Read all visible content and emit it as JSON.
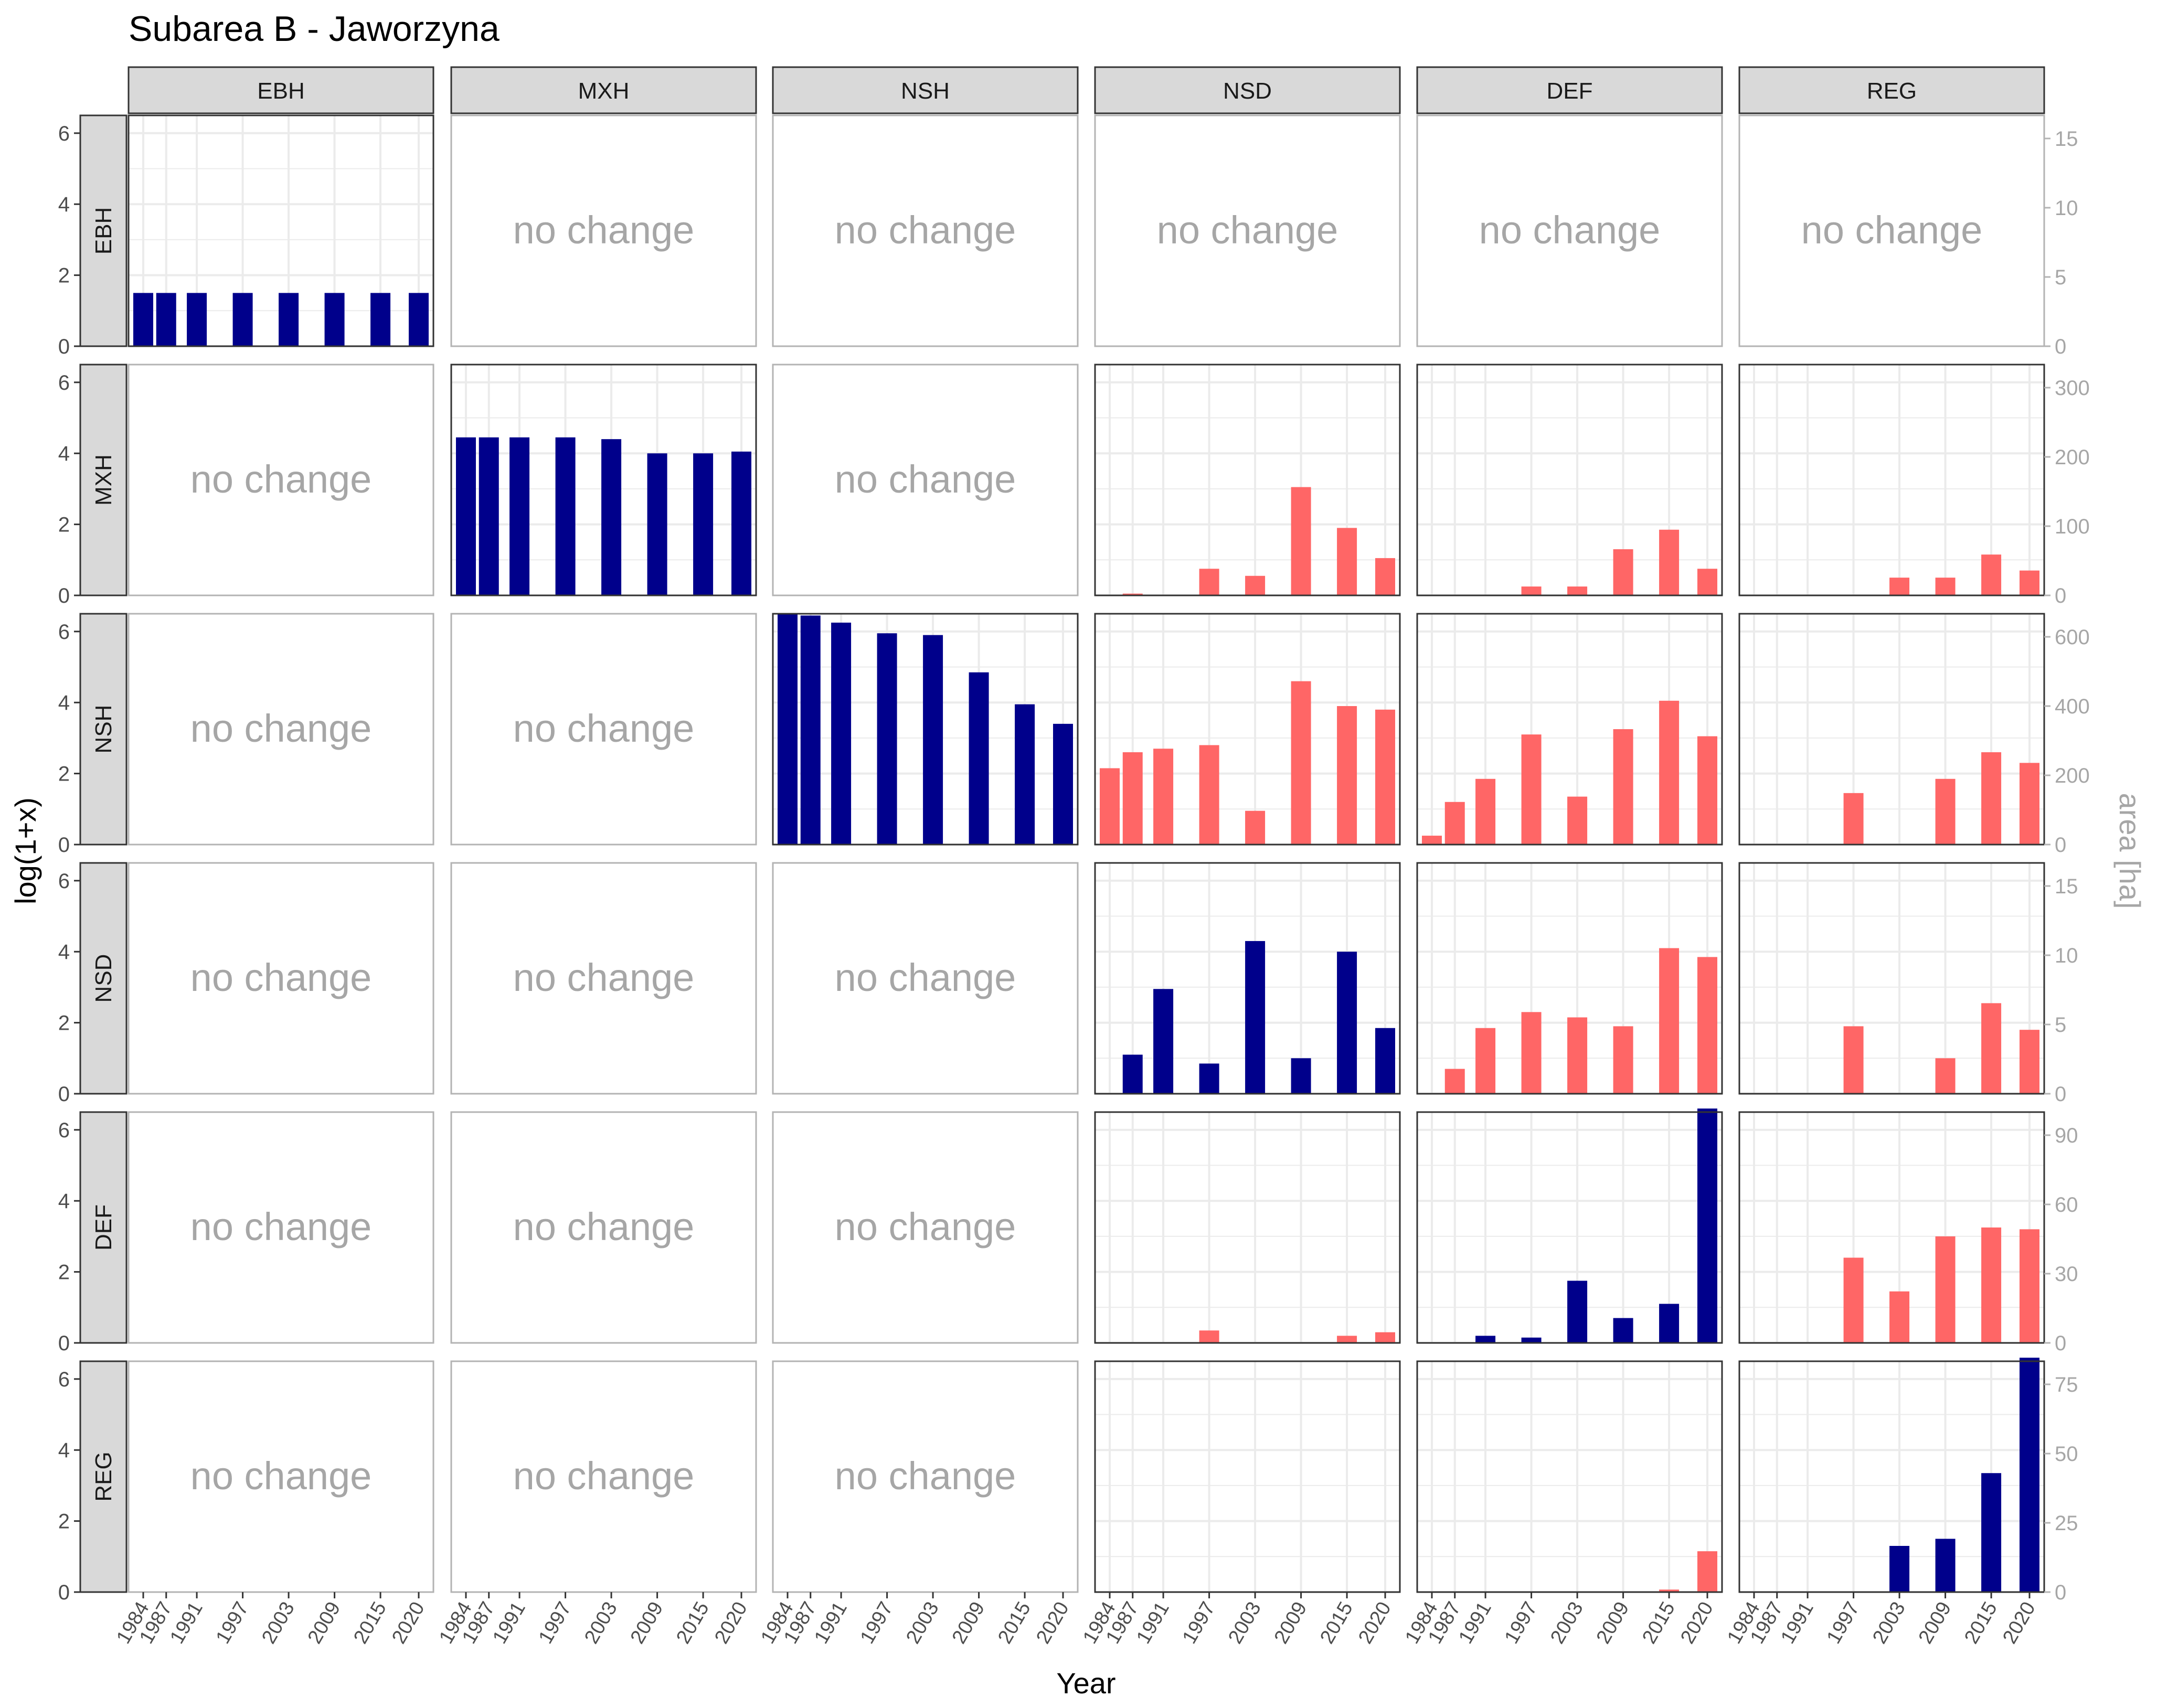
{
  "chart_data": {
    "type": "bar",
    "title": "Subarea B - Jaworzyna",
    "xlabel": "Year",
    "ylabel": "log(1+x)",
    "y2label": "area [ha]",
    "no_change_label": "no change",
    "classes": [
      "EBH",
      "MXH",
      "NSH",
      "NSD",
      "DEF",
      "REG"
    ],
    "years": [
      "1984",
      "1987",
      "1991",
      "1997",
      "2003",
      "2009",
      "2015",
      "2020"
    ],
    "ylim": [
      0,
      6.5
    ],
    "y_ticks": [
      "0",
      "2",
      "4",
      "6"
    ],
    "colors": {
      "diagonal": "#00008b",
      "transition": "#ff6666",
      "no_change_text": "#a6a6a6",
      "strip_fill": "#d9d9d9",
      "grid": "#ebebeb"
    },
    "row_secondary_axes": [
      {
        "row": "EBH",
        "ticks": [
          "0",
          "5",
          "10",
          "15"
        ]
      },
      {
        "row": "MXH",
        "ticks": [
          "0",
          "100",
          "200",
          "300"
        ]
      },
      {
        "row": "NSH",
        "ticks": [
          "0",
          "200",
          "400",
          "600"
        ]
      },
      {
        "row": "NSD",
        "ticks": [
          "0",
          "5",
          "10",
          "15"
        ]
      },
      {
        "row": "DEF",
        "ticks": [
          "0",
          "30",
          "60",
          "90"
        ]
      },
      {
        "row": "REG",
        "ticks": [
          "0",
          "25",
          "50",
          "75"
        ]
      }
    ],
    "panels": [
      {
        "row": "EBH",
        "col": "EBH",
        "diagonal": true,
        "values": [
          1.5,
          1.5,
          1.5,
          1.5,
          1.5,
          1.5,
          1.5,
          1.5
        ]
      },
      {
        "row": "EBH",
        "col": "MXH",
        "no_change": true
      },
      {
        "row": "EBH",
        "col": "NSH",
        "no_change": true
      },
      {
        "row": "EBH",
        "col": "NSD",
        "no_change": true
      },
      {
        "row": "EBH",
        "col": "DEF",
        "no_change": true
      },
      {
        "row": "EBH",
        "col": "REG",
        "no_change": true
      },
      {
        "row": "MXH",
        "col": "EBH",
        "no_change": true
      },
      {
        "row": "MXH",
        "col": "MXH",
        "diagonal": true,
        "values": [
          4.45,
          4.45,
          4.45,
          4.45,
          4.4,
          4.0,
          4.0,
          4.05
        ]
      },
      {
        "row": "MXH",
        "col": "NSH",
        "no_change": true
      },
      {
        "row": "MXH",
        "col": "NSD",
        "values": [
          0,
          0.05,
          0,
          0.75,
          0.55,
          3.05,
          1.9,
          1.05
        ]
      },
      {
        "row": "MXH",
        "col": "DEF",
        "values": [
          0,
          0,
          0,
          0.25,
          0.25,
          1.3,
          1.85,
          0.75
        ]
      },
      {
        "row": "MXH",
        "col": "REG",
        "values": [
          0,
          0,
          0,
          0,
          0.5,
          0.5,
          1.15,
          0.7
        ]
      },
      {
        "row": "NSH",
        "col": "EBH",
        "no_change": true
      },
      {
        "row": "NSH",
        "col": "MXH",
        "no_change": true
      },
      {
        "row": "NSH",
        "col": "NSH",
        "diagonal": true,
        "values": [
          6.5,
          6.45,
          6.25,
          5.95,
          5.9,
          4.85,
          3.95,
          3.4
        ]
      },
      {
        "row": "NSH",
        "col": "NSD",
        "values": [
          2.15,
          2.6,
          2.7,
          2.8,
          0.95,
          4.6,
          3.9,
          3.8
        ]
      },
      {
        "row": "NSH",
        "col": "DEF",
        "values": [
          0.25,
          1.2,
          1.85,
          3.1,
          1.35,
          3.25,
          4.05,
          3.05
        ]
      },
      {
        "row": "NSH",
        "col": "REG",
        "values": [
          0,
          0,
          0,
          1.45,
          0,
          1.85,
          2.6,
          2.3
        ]
      },
      {
        "row": "NSD",
        "col": "EBH",
        "no_change": true
      },
      {
        "row": "NSD",
        "col": "MXH",
        "no_change": true
      },
      {
        "row": "NSD",
        "col": "NSH",
        "no_change": true
      },
      {
        "row": "NSD",
        "col": "NSD",
        "diagonal": true,
        "values": [
          0,
          1.1,
          2.95,
          0.85,
          4.3,
          1.0,
          4.0,
          1.85
        ]
      },
      {
        "row": "NSD",
        "col": "DEF",
        "values": [
          0,
          0.7,
          1.85,
          2.3,
          2.15,
          1.9,
          4.1,
          3.85
        ]
      },
      {
        "row": "NSD",
        "col": "REG",
        "values": [
          0,
          0,
          0,
          1.9,
          0,
          1.0,
          2.55,
          1.8
        ]
      },
      {
        "row": "DEF",
        "col": "EBH",
        "no_change": true
      },
      {
        "row": "DEF",
        "col": "MXH",
        "no_change": true
      },
      {
        "row": "DEF",
        "col": "NSH",
        "no_change": true
      },
      {
        "row": "DEF",
        "col": "NSD",
        "values": [
          0,
          0,
          0,
          0.35,
          0,
          0,
          0.2,
          0.3
        ]
      },
      {
        "row": "DEF",
        "col": "DEF",
        "diagonal": true,
        "values": [
          0,
          0,
          0.2,
          0.15,
          1.75,
          0.7,
          1.1,
          6.6
        ]
      },
      {
        "row": "DEF",
        "col": "REG",
        "values": [
          0,
          0,
          0,
          2.4,
          1.45,
          3.0,
          3.25,
          3.2
        ]
      },
      {
        "row": "REG",
        "col": "EBH",
        "no_change": true
      },
      {
        "row": "REG",
        "col": "MXH",
        "no_change": true
      },
      {
        "row": "REG",
        "col": "NSH",
        "no_change": true
      },
      {
        "row": "REG",
        "col": "NSD",
        "values": [
          0,
          0,
          0,
          0,
          0,
          0.02,
          0,
          0.02
        ]
      },
      {
        "row": "REG",
        "col": "DEF",
        "values": [
          0,
          0,
          0,
          0,
          0,
          0,
          0.07,
          1.15
        ]
      },
      {
        "row": "REG",
        "col": "REG",
        "diagonal": true,
        "values": [
          0,
          0,
          0,
          0,
          1.3,
          1.5,
          3.35,
          6.6
        ]
      }
    ]
  }
}
